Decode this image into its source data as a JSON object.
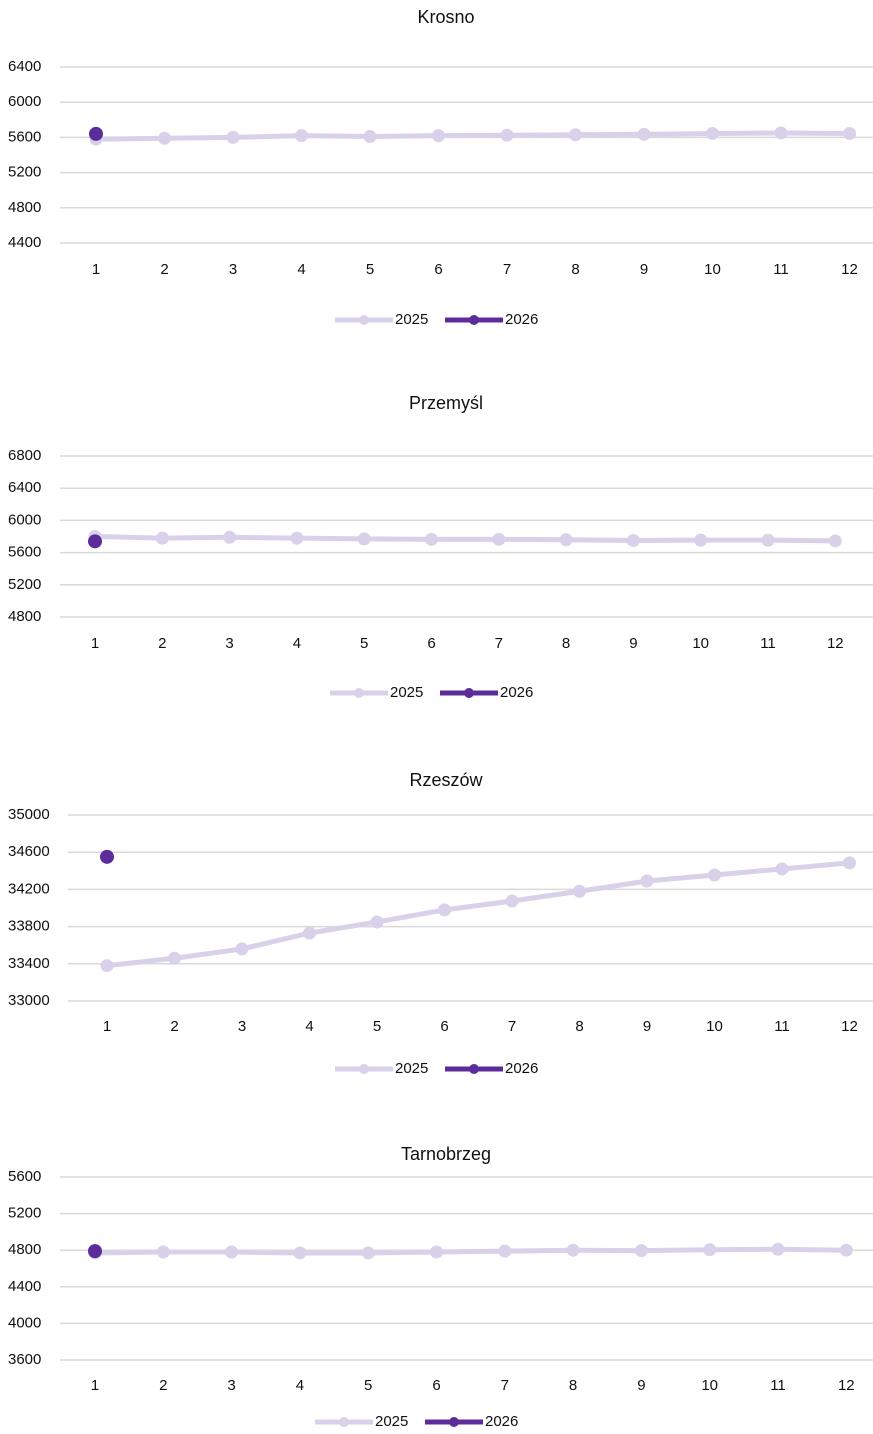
{
  "chart_data": [
    {
      "type": "line",
      "title": "Krosno",
      "categories": [
        "1",
        "2",
        "3",
        "4",
        "5",
        "6",
        "7",
        "8",
        "9",
        "10",
        "11",
        "12"
      ],
      "series": [
        {
          "name": "2025",
          "color": "#d9d1ea",
          "values": [
            5580,
            5590,
            5600,
            5620,
            5610,
            5620,
            5625,
            5630,
            5635,
            5645,
            5650,
            5645
          ]
        },
        {
          "name": "2026",
          "color": "#5b2c9a",
          "values": [
            5640,
            null,
            null,
            null,
            null,
            null,
            null,
            null,
            null,
            null,
            null,
            null
          ]
        }
      ],
      "ylim": [
        4400,
        6400
      ],
      "yticks": [
        4400,
        4800,
        5200,
        5600,
        6000,
        6400
      ],
      "grid": true,
      "legend": "bottom"
    },
    {
      "type": "line",
      "title": "Przemyśl",
      "categories": [
        "1",
        "2",
        "3",
        "4",
        "5",
        "6",
        "7",
        "8",
        "9",
        "10",
        "11",
        "12"
      ],
      "series": [
        {
          "name": "2025",
          "color": "#d9d1ea",
          "values": [
            5800,
            5780,
            5790,
            5780,
            5770,
            5765,
            5765,
            5760,
            5750,
            5755,
            5755,
            5745
          ]
        },
        {
          "name": "2026",
          "color": "#5b2c9a",
          "values": [
            5740,
            null,
            null,
            null,
            null,
            null,
            null,
            null,
            null,
            null,
            null,
            null
          ]
        }
      ],
      "ylim": [
        4800,
        6800
      ],
      "yticks": [
        4800,
        5200,
        5600,
        6000,
        6400,
        6800
      ],
      "grid": true,
      "legend": "bottom"
    },
    {
      "type": "line",
      "title": "Rzeszów",
      "categories": [
        "1",
        "2",
        "3",
        "4",
        "5",
        "6",
        "7",
        "8",
        "9",
        "10",
        "11",
        "12"
      ],
      "series": [
        {
          "name": "2025",
          "color": "#d9d1ea",
          "values": [
            33380,
            33460,
            33560,
            33730,
            33850,
            33980,
            34075,
            34180,
            34290,
            34355,
            34420,
            34485
          ]
        },
        {
          "name": "2026",
          "color": "#5b2c9a",
          "values": [
            34550,
            null,
            null,
            null,
            null,
            null,
            null,
            null,
            null,
            null,
            null,
            null
          ]
        }
      ],
      "ylim": [
        33000,
        35000
      ],
      "yticks": [
        33000,
        33400,
        33800,
        34200,
        34600,
        35000
      ],
      "grid": true,
      "legend": "bottom"
    },
    {
      "type": "line",
      "title": "Tarnobrzeg",
      "categories": [
        "1",
        "2",
        "3",
        "4",
        "5",
        "6",
        "7",
        "8",
        "9",
        "10",
        "11",
        "12"
      ],
      "series": [
        {
          "name": "2025",
          "color": "#d9d1ea",
          "values": [
            4770,
            4780,
            4780,
            4770,
            4770,
            4780,
            4790,
            4800,
            4795,
            4805,
            4810,
            4800
          ]
        },
        {
          "name": "2026",
          "color": "#5b2c9a",
          "values": [
            4790,
            null,
            null,
            null,
            null,
            null,
            null,
            null,
            null,
            null,
            null,
            null
          ]
        }
      ],
      "ylim": [
        3600,
        5600
      ],
      "yticks": [
        3600,
        4000,
        4400,
        4800,
        5200,
        5600
      ],
      "grid": true,
      "legend": "bottom"
    }
  ]
}
